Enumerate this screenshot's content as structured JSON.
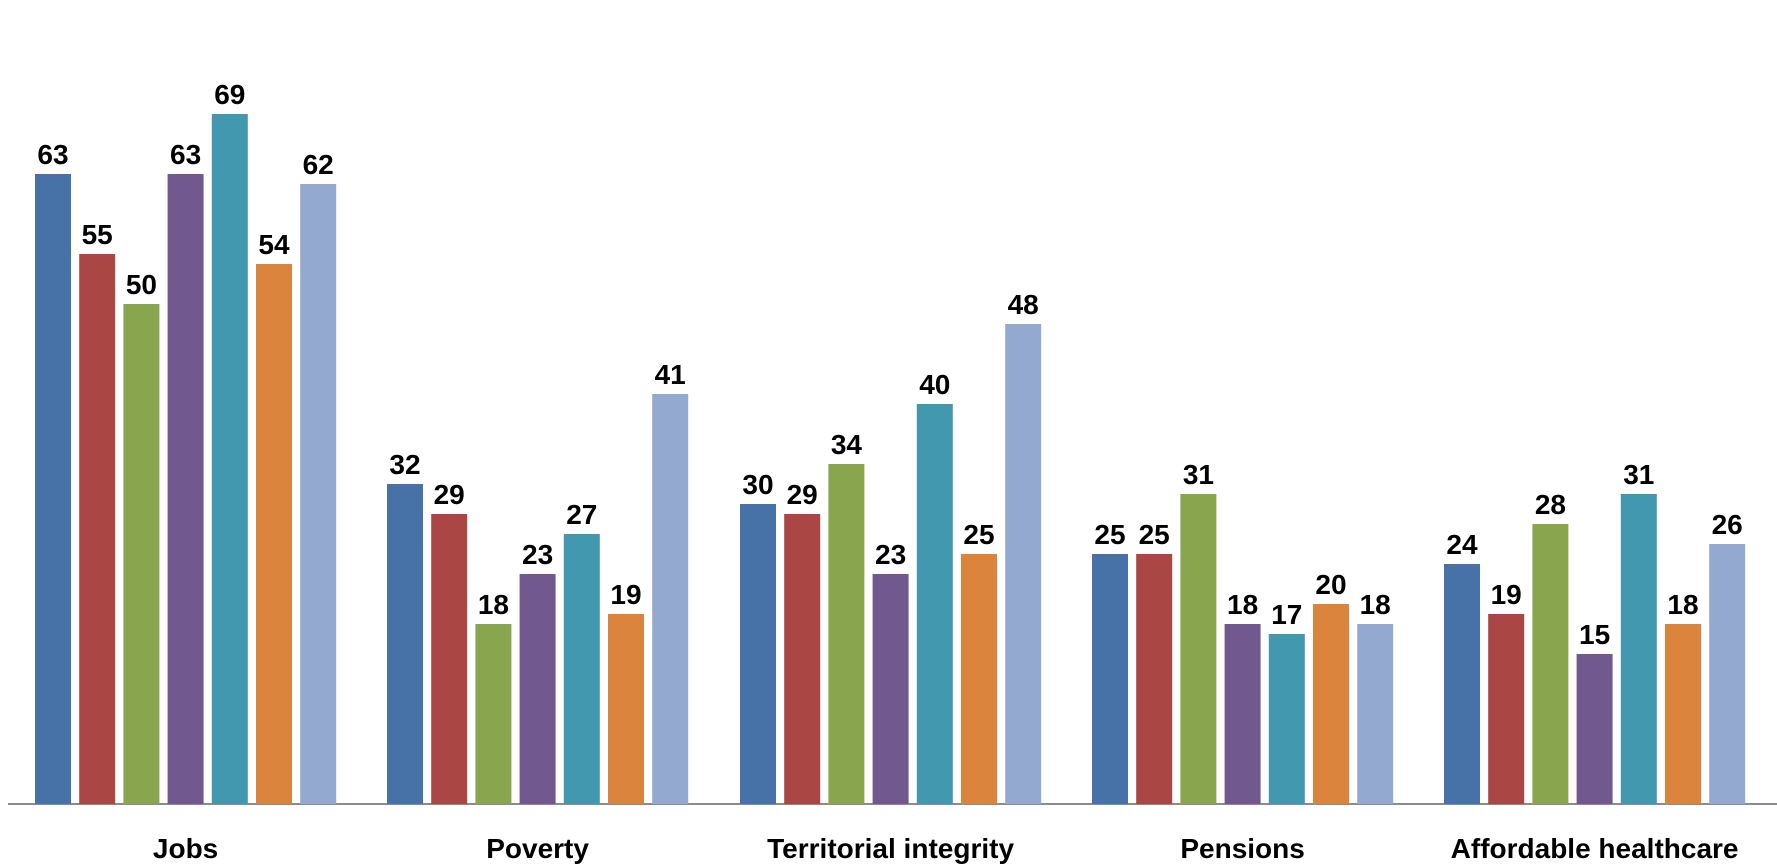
{
  "chart_data": {
    "type": "bar",
    "categories": [
      "Jobs",
      "Poverty",
      "Territorial integrity",
      "Pensions",
      "Affordable healthcare"
    ],
    "series": [
      {
        "color": "#4672A8",
        "values": [
          63,
          32,
          30,
          25,
          24
        ]
      },
      {
        "color": "#AA4643",
        "values": [
          55,
          29,
          29,
          25,
          19
        ]
      },
      {
        "color": "#89A54E",
        "values": [
          50,
          18,
          34,
          31,
          28
        ]
      },
      {
        "color": "#71588F",
        "values": [
          63,
          23,
          23,
          18,
          15
        ]
      },
      {
        "color": "#4198AF",
        "values": [
          69,
          27,
          40,
          17,
          31
        ]
      },
      {
        "color": "#DB843D",
        "values": [
          54,
          19,
          25,
          20,
          18
        ]
      },
      {
        "color": "#93A9CF",
        "values": [
          62,
          41,
          48,
          18,
          26
        ]
      }
    ],
    "ylim": [
      0,
      69
    ],
    "grid": false,
    "data_labels": true
  }
}
